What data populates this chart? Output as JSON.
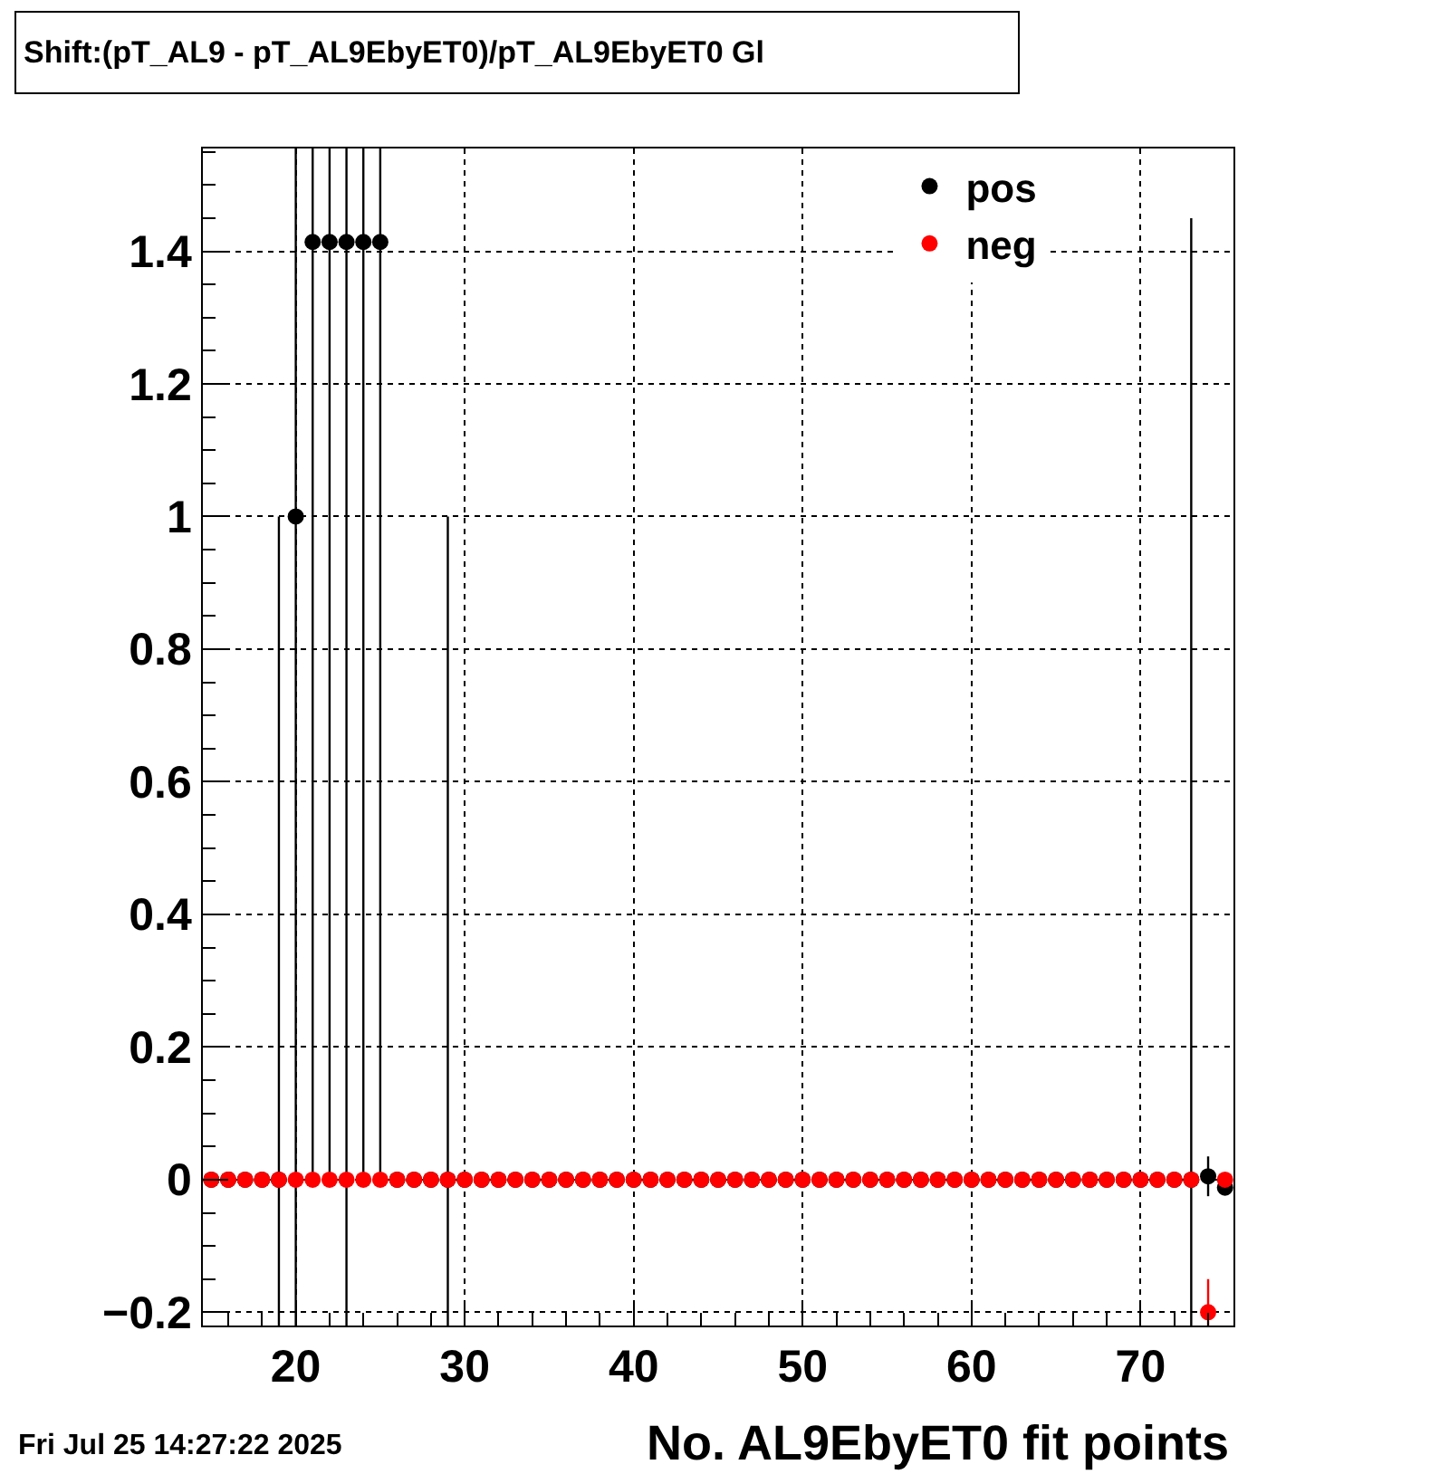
{
  "chart_data": {
    "type": "scatter",
    "title": "Shift:(pT_AL9 - pT_AL9EbyET0)/pT_AL9EbyET0 Gl",
    "xlabel": "No. AL9EbyET0 fit points",
    "annotations": [
      "Fri Jul 25 14:27:22 2025"
    ],
    "x": [
      15,
      16,
      17,
      18,
      19,
      20,
      21,
      22,
      23,
      24,
      25,
      26,
      27,
      28,
      29,
      30,
      31,
      32,
      33,
      34,
      35,
      36,
      37,
      38,
      39,
      40,
      41,
      42,
      43,
      44,
      45,
      46,
      47,
      48,
      49,
      50,
      51,
      52,
      53,
      54,
      55,
      56,
      57,
      58,
      59,
      60,
      61,
      62,
      63,
      64,
      65,
      66,
      67,
      68,
      69,
      70,
      71,
      72,
      73,
      74,
      75
    ],
    "series": [
      {
        "name": "pos",
        "color": "#000000",
        "values": [
          0,
          0,
          0,
          0,
          0,
          1,
          1.414,
          1.414,
          1.414,
          1.414,
          1.414,
          0,
          0,
          0,
          0,
          0,
          0,
          0,
          0,
          0,
          0,
          0,
          0,
          0,
          0,
          0,
          0,
          0,
          0,
          0,
          0,
          0,
          0,
          0,
          0,
          0,
          0,
          0,
          0,
          0,
          0,
          0,
          0,
          0,
          0,
          0,
          0,
          0,
          0,
          0,
          0,
          0,
          0,
          0,
          0,
          0,
          0,
          0,
          0,
          0.005,
          -0.012
        ],
        "errors": [
          null,
          null,
          null,
          null,
          1,
          1.414,
          1.414,
          1.414,
          2,
          1.414,
          1.414,
          null,
          null,
          null,
          1,
          null,
          null,
          null,
          null,
          null,
          null,
          null,
          null,
          null,
          null,
          null,
          null,
          null,
          null,
          null,
          null,
          null,
          null,
          null,
          null,
          null,
          null,
          null,
          null,
          null,
          null,
          null,
          null,
          null,
          null,
          null,
          null,
          null,
          null,
          null,
          null,
          null,
          null,
          null,
          null,
          null,
          null,
          null,
          1.45,
          0.03,
          0.01
        ]
      },
      {
        "name": "neg",
        "color": "#ff0000",
        "values": [
          0,
          0,
          0,
          0,
          0,
          0,
          0,
          0,
          0,
          0,
          0,
          0,
          0,
          0,
          0,
          0,
          0,
          0,
          0,
          0,
          0,
          0,
          0,
          0,
          0,
          0,
          0,
          0,
          0,
          0,
          0,
          0,
          0,
          0,
          0,
          0,
          0,
          0,
          0,
          0,
          0,
          0,
          0,
          0,
          0,
          0,
          0,
          0,
          0,
          0,
          0,
          0,
          0,
          0,
          0,
          0,
          0,
          0,
          0,
          -0.2,
          0
        ],
        "errors": [
          null,
          null,
          null,
          null,
          null,
          null,
          null,
          null,
          null,
          null,
          null,
          null,
          null,
          null,
          null,
          null,
          null,
          null,
          null,
          null,
          null,
          null,
          null,
          null,
          null,
          null,
          null,
          null,
          null,
          null,
          null,
          null,
          null,
          null,
          null,
          null,
          null,
          null,
          null,
          null,
          null,
          null,
          null,
          null,
          null,
          null,
          null,
          null,
          null,
          null,
          null,
          null,
          null,
          null,
          null,
          null,
          null,
          null,
          null,
          0.05,
          null
        ]
      }
    ],
    "xlim": [
      14.5,
      75.5
    ],
    "ylim": [
      -0.22,
      1.555
    ],
    "xticks": [
      20,
      30,
      40,
      50,
      60,
      70
    ],
    "yticks": [
      {
        "value": -0.2,
        "label": "−0.2"
      },
      0,
      0.2,
      0.4,
      0.6,
      0.8,
      1,
      1.2,
      1.4
    ],
    "grid": true,
    "legend": "top right",
    "marker": "circle"
  }
}
